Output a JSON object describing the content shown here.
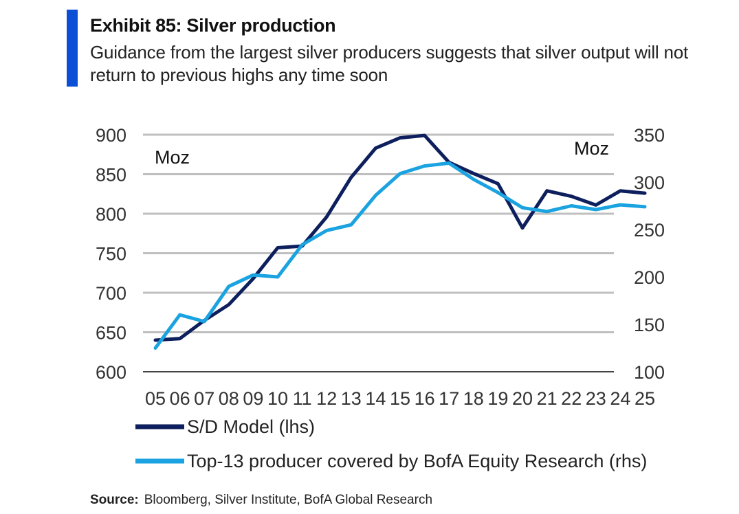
{
  "header": {
    "title": "Exhibit 85: Silver production",
    "subtitle": "Guidance from the largest silver producers suggests that silver output will not return to previous highs any time soon"
  },
  "footer": {
    "source_label": "Source:",
    "source_text": "Bloomberg, Silver Institute, BofA Global Research"
  },
  "colors": {
    "accent": "#0a4fd6",
    "sd_model": "#0d1f5c",
    "top13": "#1aa3e0",
    "grid": "#bfbfbf"
  },
  "chart_data": {
    "type": "line",
    "title": "Exhibit 85: Silver production",
    "categories": [
      "05",
      "06",
      "07",
      "08",
      "09",
      "10",
      "11",
      "12",
      "13",
      "14",
      "15",
      "16",
      "17",
      "18",
      "19",
      "20",
      "21",
      "22",
      "23",
      "24",
      "25"
    ],
    "left_axis": {
      "unit": "Moz",
      "ylim": [
        600,
        900
      ],
      "ticks": [
        600,
        650,
        700,
        750,
        800,
        850,
        900
      ]
    },
    "right_axis": {
      "unit": "Moz",
      "ylim": [
        100,
        350
      ],
      "ticks": [
        100,
        150,
        200,
        250,
        300,
        350
      ]
    },
    "series": [
      {
        "name": "S/D Model (lhs)",
        "axis": "left",
        "color": "#0d1f5c",
        "values": [
          640,
          642,
          665,
          685,
          718,
          757,
          759,
          796,
          846,
          883,
          896,
          899,
          865,
          851,
          838,
          782,
          829,
          822,
          811,
          829,
          826
        ]
      },
      {
        "name": "Top-13 producer covered by BofA Equity Research (rhs)",
        "axis": "right",
        "color": "#1aa3e0",
        "values": [
          125,
          160,
          153,
          190,
          202,
          200,
          234,
          249,
          255,
          286,
          309,
          317,
          320,
          303,
          289,
          273,
          269,
          275,
          271,
          276,
          274
        ]
      }
    ],
    "grid": true,
    "legend": "bottom"
  }
}
